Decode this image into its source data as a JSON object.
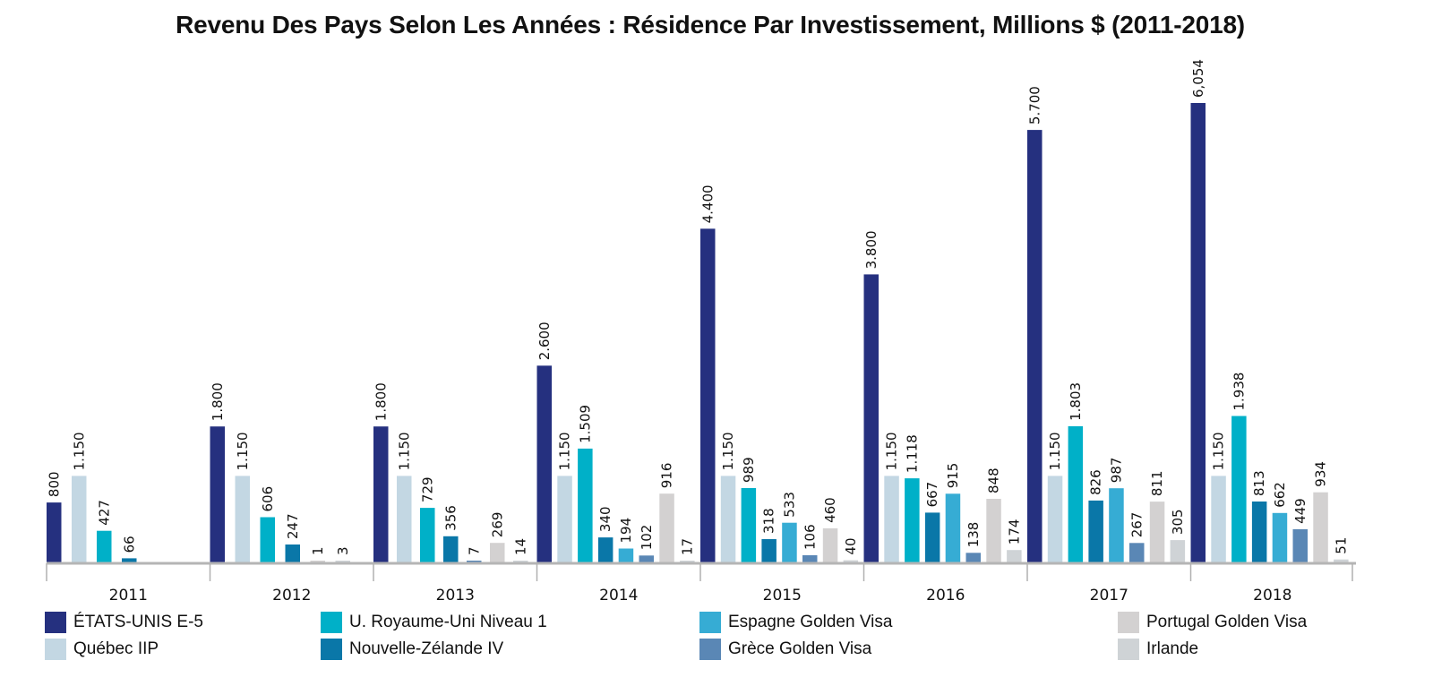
{
  "chart_data": {
    "type": "bar",
    "title": "Revenu Des Pays Selon Les Années : Résidence Par Investissement, Millions $ (2011-2018)",
    "xlabel": "",
    "ylabel": "",
    "ylim": [
      0,
      6054
    ],
    "grid": false,
    "legend_position": "bottom",
    "categories": [
      "2011",
      "2012",
      "2013",
      "2014",
      "2015",
      "2016",
      "2017",
      "2018"
    ],
    "series": [
      {
        "name": "ÉTATS-UNIS E-5",
        "color": "#25307f",
        "values": [
          800,
          1800,
          1800,
          2600,
          4400,
          3800,
          5700,
          6054
        ],
        "labels": [
          "800",
          "1.800",
          "1.800",
          "2.600",
          "4.400",
          "3.800",
          "5.700",
          "6,054"
        ]
      },
      {
        "name": "Québec IIP",
        "color": "#c3d7e3",
        "values": [
          1150,
          1150,
          1150,
          1150,
          1150,
          1150,
          1150,
          1150
        ],
        "labels": [
          "1.150",
          "1.150",
          "1.150",
          "1.150",
          "1.150",
          "1.150",
          "1.150",
          "1.150"
        ]
      },
      {
        "name": "U. Royaume-Uni Niveau 1",
        "color": "#00b0c8",
        "values": [
          427,
          606,
          729,
          1509,
          989,
          1118,
          1803,
          1938
        ],
        "labels": [
          "427",
          "606",
          "729",
          "1.509",
          "989",
          "1.118",
          "1.803",
          "1.938"
        ]
      },
      {
        "name": "Nouvelle-Zélande IV",
        "color": "#0a77a8",
        "values": [
          66,
          247,
          356,
          340,
          318,
          667,
          826,
          813
        ],
        "labels": [
          "66",
          "247",
          "356",
          "340",
          "318",
          "667",
          "826",
          "813"
        ]
      },
      {
        "name": "Espagne Golden Visa",
        "color": "#36acd4",
        "values": [
          null,
          null,
          null,
          194,
          533,
          915,
          987,
          662
        ],
        "labels": [
          "",
          "",
          "",
          "194",
          "533",
          "915",
          "987",
          "662"
        ]
      },
      {
        "name": "Grèce Golden Visa",
        "color": "#5a87b5",
        "values": [
          null,
          null,
          7,
          102,
          106,
          138,
          267,
          449
        ],
        "labels": [
          "",
          "",
          "7",
          "102",
          "106",
          "138",
          "267",
          "449"
        ]
      },
      {
        "name": "Portugal Golden Visa",
        "color": "#d3d1d1",
        "values": [
          null,
          1,
          269,
          916,
          460,
          848,
          811,
          934
        ],
        "labels": [
          "",
          "1",
          "269",
          "916",
          "460",
          "848",
          "811",
          "934"
        ]
      },
      {
        "name": "Irlande",
        "color": "#cfd3d6",
        "values": [
          null,
          3,
          14,
          17,
          40,
          174,
          305,
          51
        ],
        "labels": [
          "",
          "3",
          "14",
          "17",
          "40",
          "174",
          "305",
          "51"
        ]
      }
    ]
  },
  "legend": {
    "items": [
      {
        "label": "ÉTATS-UNIS E-5",
        "color": "#25307f"
      },
      {
        "label": "Québec IIP",
        "color": "#c3d7e3"
      },
      {
        "label": "U. Royaume-Uni Niveau 1",
        "color": "#00b0c8"
      },
      {
        "label": "Nouvelle-Zélande IV",
        "color": "#0a77a8"
      },
      {
        "label": "Espagne Golden Visa",
        "color": "#36acd4"
      },
      {
        "label": "Grèce Golden Visa",
        "color": "#5a87b5"
      },
      {
        "label": "Portugal Golden Visa",
        "color": "#d3d1d1"
      },
      {
        "label": "Irlande",
        "color": "#cfd3d6"
      }
    ]
  }
}
